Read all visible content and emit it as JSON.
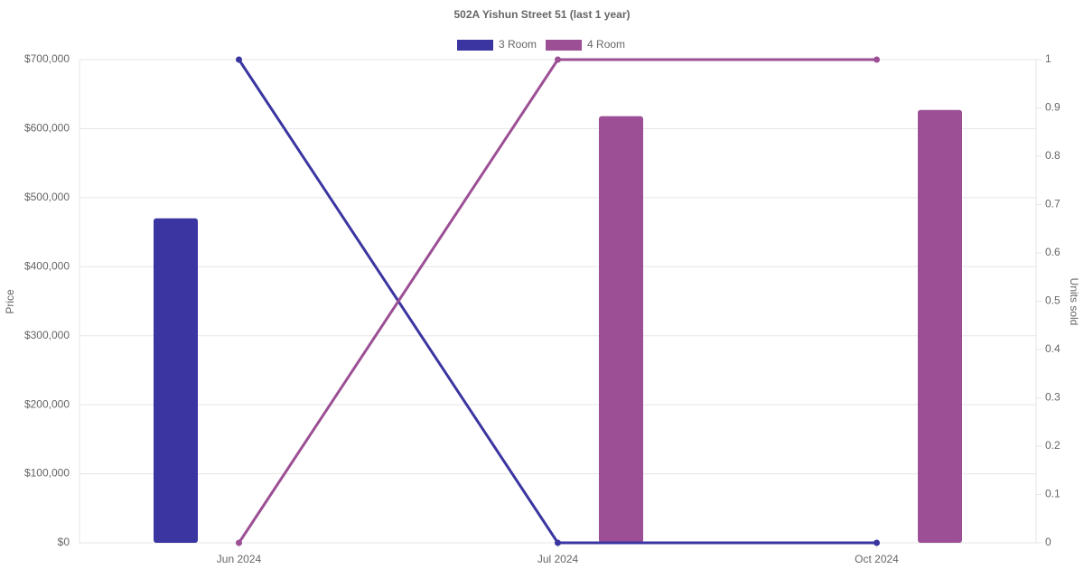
{
  "chart_data": {
    "type": "bar-line",
    "title": "502A Yishun Street 51 (last 1 year)",
    "categories": [
      "Jun 2024",
      "Jul 2024",
      "Oct 2024"
    ],
    "series": [
      {
        "name": "3 Room",
        "color": "#3a35a0",
        "values": [
          470000,
          null,
          null
        ],
        "units": [
          1,
          0,
          0
        ]
      },
      {
        "name": "4 Room",
        "color": "#9c4f94",
        "values": [
          null,
          618000,
          627000
        ],
        "units": [
          0,
          1,
          1
        ]
      }
    ],
    "y_label": "Price",
    "y2_label": "Units sold",
    "ylim": [
      0,
      700000
    ],
    "yticks": [
      {
        "value": 0,
        "label": "$0"
      },
      {
        "value": 100000,
        "label": "$100,000"
      },
      {
        "value": 200000,
        "label": "$200,000"
      },
      {
        "value": 300000,
        "label": "$300,000"
      },
      {
        "value": 400000,
        "label": "$400,000"
      },
      {
        "value": 500000,
        "label": "$500,000"
      },
      {
        "value": 600000,
        "label": "$600,000"
      },
      {
        "value": 700000,
        "label": "$700,000"
      }
    ],
    "y2lim": [
      0,
      1
    ],
    "y2ticks": [
      0,
      0.1,
      0.2,
      0.3,
      0.4,
      0.5,
      0.6,
      0.7,
      0.8,
      0.9,
      1
    ],
    "grid": true
  }
}
